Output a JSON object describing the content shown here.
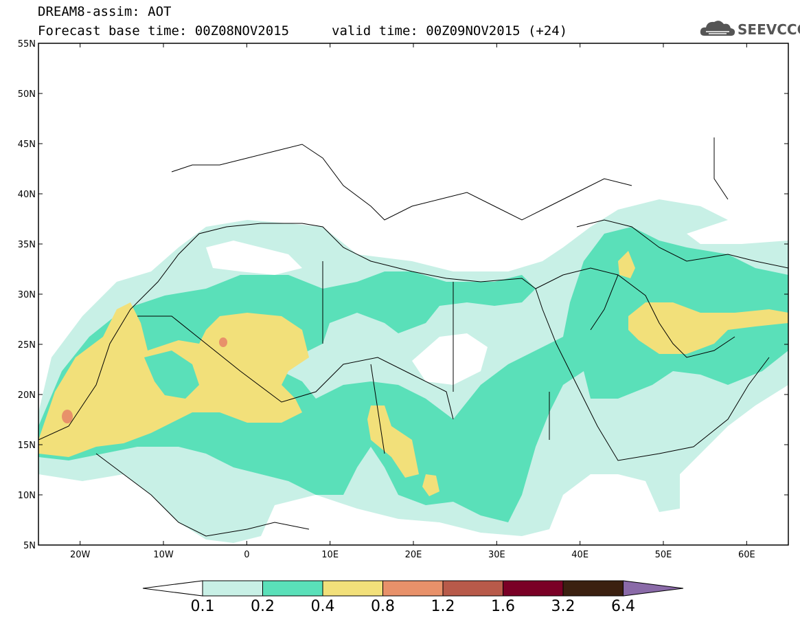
{
  "header": {
    "title": "DREAM8-assim: AOT",
    "base_time": "Forecast base time: 00Z08NOV2015",
    "valid_time": "valid time: 00Z09NOV2015 (+24)"
  },
  "logo": {
    "icon": "cloud-icon",
    "text": "SEEVCCC"
  },
  "map": {
    "lat_labels": [
      "55N",
      "50N",
      "45N",
      "40N",
      "35N",
      "30N",
      "25N",
      "20N",
      "15N",
      "10N",
      "5N"
    ],
    "lon_labels": [
      "20W",
      "10W",
      "0",
      "10E",
      "20E",
      "30E",
      "40E",
      "50E",
      "60E"
    ],
    "lon_range": [
      -25,
      65
    ],
    "lat_range": [
      5,
      55
    ]
  },
  "colorbar": {
    "levels": [
      "0.1",
      "0.2",
      "0.4",
      "0.8",
      "1.2",
      "1.6",
      "3.2",
      "6.4"
    ],
    "colors": [
      "#ffffff",
      "#c8f0e6",
      "#5ae0b9",
      "#f2e07a",
      "#e8916a",
      "#b85a4a",
      "#7a0026",
      "#3b2010",
      "#8a6aa8"
    ]
  }
}
